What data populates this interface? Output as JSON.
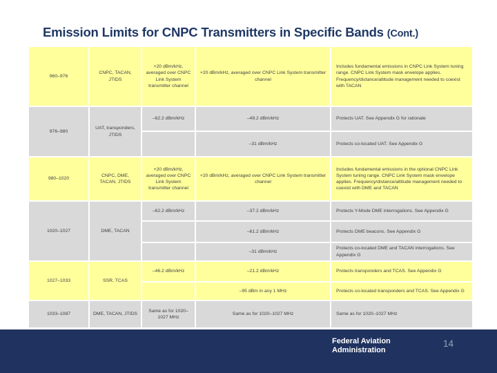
{
  "title": {
    "main": "Emission Limits for CNPC Transmitters in Specific Bands ",
    "cont": "(Cont.)"
  },
  "colors": {
    "title_text": "#1F3864",
    "row_yellow": "#FFFF9C",
    "row_gray": "#D9D9D9",
    "footer_bg": "#20325F",
    "cell_text": "#3F3F46",
    "page_number": "#97A3BB"
  },
  "table": {
    "rows": [
      {
        "band": "960–976",
        "systems": "CNPC, TACAN, JTIDS",
        "tone": "yellow",
        "sub_heights": [
          85
        ],
        "subrows": [
          {
            "limit1": "+20 dBm/kHz, averaged over CNPC Link System transmitter channel",
            "limit2": "+20 dBm/kHz, averaged over CNPC Link System transmitter channel",
            "notes": "Includes fundamental emissions in CNPC Link System tuning range. CNPC Link System mask envelope applies. Frequency/distance/altitude management needed to coexist with TACAN"
          }
        ]
      },
      {
        "band": "976–980",
        "systems": "UAT, transponders, JTIDS",
        "tone": "gray",
        "sub_heights": [
          34,
          35
        ],
        "subrows": [
          {
            "limit1": "–62.2 dBm/kHz",
            "limit2": "–49.2 dBm/kHz",
            "notes": "Protects UAT. See Appendix G for rationale"
          },
          {
            "limit1": "",
            "limit2": "–31 dBm/kHz",
            "notes": "Protects co-located UAT. See Appendix G"
          }
        ]
      },
      {
        "band": "980–1020",
        "systems": "CNPC, DME, TACAN, JTIDS",
        "tone": "yellow",
        "sub_heights": [
          62
        ],
        "subrows": [
          {
            "limit1": "+20 dBm/kHz, averaged over CNPC Link System transmitter channel",
            "limit2": "+20 dBm/kHz, averaged over CNPC Link System transmitter channel",
            "notes": "Includes fundamental emissions in the optional CNPC Link System tuning range. CNPC Link System mask envelope applies. Frequency/distance/altitude management needed to coexist with DME and TACAN"
          }
        ]
      },
      {
        "band": "1020–1027",
        "systems": "DME, TACAN",
        "tone": "gray",
        "sub_heights": [
          27,
          29,
          25
        ],
        "subrows": [
          {
            "limit1": "–62.2 dBm/kHz",
            "limit2": "–37.2 dBm/kHz",
            "notes": "Protects Y-Mode DME interrogations. See Appendix G"
          },
          {
            "limit1": "",
            "limit2": "–61.2 dBm/kHz",
            "notes": "Protects DME beacons. See Appendix G"
          },
          {
            "limit1": "",
            "limit2": "–31 dBm/kHz",
            "notes": "Protects co-located DME and TACAN interrogations. See Appendix G"
          }
        ]
      },
      {
        "band": "1027–1033",
        "systems": "SSR, TCAS",
        "tone": "yellow",
        "sub_heights": [
          28,
          25
        ],
        "subrows": [
          {
            "limit1": "–46.2 dBm/kHz",
            "limit2": "–21.2 dBm/kHz",
            "notes": "Protects transponders and TCAS. See Appendix G"
          },
          {
            "limit1": "",
            "limit2": "–95 dBm in any 1 MHz",
            "notes": "Protects co-located transponders and TCAS. See Appendix G"
          }
        ]
      },
      {
        "band": "1033–1087",
        "systems": "DME, TACAN, JTIDS",
        "tone": "gray",
        "sub_heights": [
          38
        ],
        "subrows": [
          {
            "limit1": "Same as for 1020–1027 MHz",
            "limit2": "Same as for 1020–1027 MHz",
            "notes": "Same as for 1020–1027 MHz"
          }
        ]
      }
    ]
  },
  "footer": {
    "org_line1": "Federal Aviation",
    "org_line2": "Administration",
    "page": "14"
  }
}
